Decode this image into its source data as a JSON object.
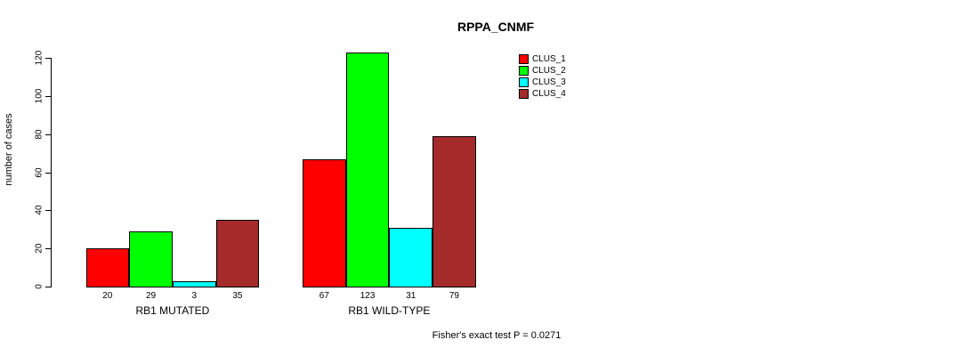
{
  "chart_data": {
    "type": "bar",
    "title": "RPPA_CNMF",
    "ylabel": "number of cases",
    "xlabel": "",
    "categories": [
      "RB1 MUTATED",
      "RB1 WILD-TYPE"
    ],
    "series": [
      {
        "name": "CLUS_1",
        "color": "#ff0000",
        "values": [
          20,
          67
        ]
      },
      {
        "name": "CLUS_2",
        "color": "#00ff00",
        "values": [
          29,
          123
        ]
      },
      {
        "name": "CLUS_3",
        "color": "#00ffff",
        "values": [
          3,
          31
        ]
      },
      {
        "name": "CLUS_4",
        "color": "#a52a2a",
        "values": [
          35,
          79
        ]
      }
    ],
    "bar_value_labels": [
      [
        20,
        29,
        3,
        35
      ],
      [
        67,
        123,
        31,
        79
      ]
    ],
    "yticks": [
      0,
      20,
      40,
      60,
      80,
      100,
      120
    ],
    "ylim": [
      0,
      123
    ],
    "grid": false,
    "legend_position": "top-right",
    "annotation": "Fisher's exact test P = 0.0271"
  }
}
